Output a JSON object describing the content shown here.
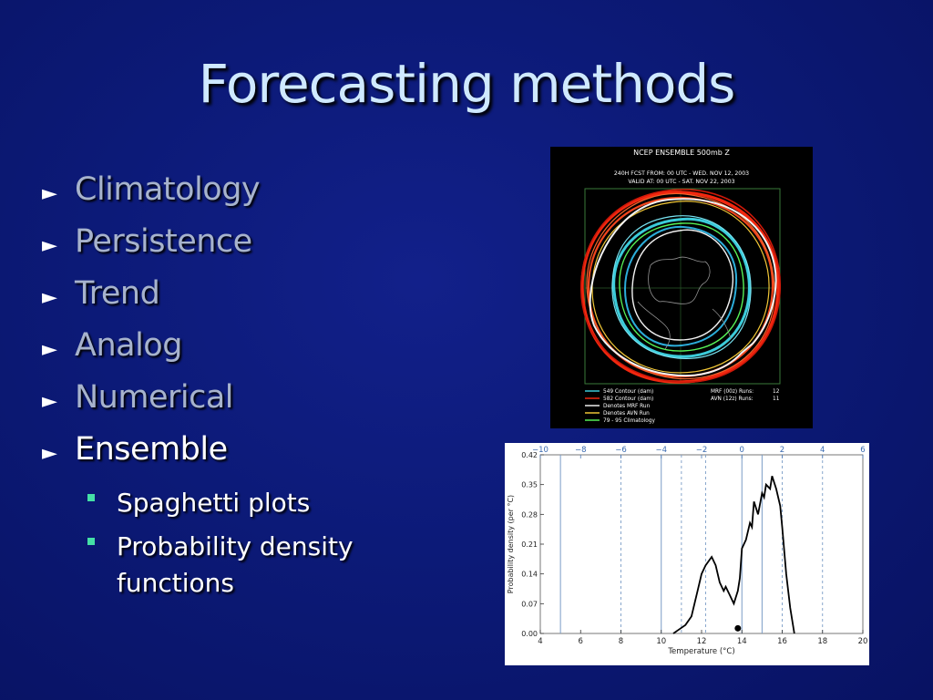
{
  "slide": {
    "title": "Forecasting methods",
    "bullets": [
      "Climatology",
      "Persistence",
      "Trend",
      "Analog",
      "Numerical",
      "Ensemble"
    ],
    "active_bullet": "Ensemble",
    "sub_bullets": [
      "Spaghetti plots",
      "Probability density functions"
    ],
    "colors": {
      "title": "#cfe9ff",
      "dim_text": "#a7b3cd",
      "sub_marker": "#45e0a6",
      "background": "#0c1a78"
    }
  },
  "spaghetti": {
    "title": "NCEP ENSEMBLE 500mb Z",
    "line1": "240H FCST FROM:  00 UTC - WED. NOV 12, 2003",
    "line2": "VALID AT:  00 UTC - SAT. NOV 22, 2003",
    "legend": [
      {
        "label": "549 Contour (dam)",
        "color": "#3fd7e6"
      },
      {
        "label": "582 Contour (dam)",
        "color": "#ff2a10"
      },
      {
        "label": "Denotes MRF Run",
        "color": "#ffffff"
      },
      {
        "label": "Denotes AVN Run",
        "color": "#ffd23a"
      },
      {
        "label": "79 - 95 Climatology",
        "color": "#5cff5c"
      }
    ],
    "runs": [
      {
        "label": "MRF (00z) Runs:",
        "value": "12"
      },
      {
        "label": "AVN (12z) Runs:",
        "value": "11"
      }
    ]
  },
  "chart_data": {
    "type": "line",
    "xlabel": "Temperature (°C)",
    "ylabel": "Probability density (per °C)",
    "xlim": [
      4,
      20
    ],
    "ylim": [
      0,
      0.42
    ],
    "x_ticks": [
      "4",
      "6",
      "8",
      "10",
      "12",
      "14",
      "16",
      "18",
      "20"
    ],
    "y_ticks": [
      "0.00",
      "0.07",
      "0.14",
      "0.21",
      "0.28",
      "0.35",
      "0.42"
    ],
    "top_ticks": [
      "−10",
      "−8",
      "−6",
      "−4",
      "−2",
      "0",
      "2",
      "4",
      "6"
    ],
    "series": [
      {
        "x": [
          10.6,
          10.9,
          11.2,
          11.5,
          11.8,
          12.0,
          12.2,
          12.5,
          12.7,
          12.9,
          13.1,
          13.2,
          13.4,
          13.6,
          13.8,
          13.9,
          14.0,
          14.2,
          14.4,
          14.5,
          14.6,
          14.8,
          15.0,
          15.1,
          15.2,
          15.4,
          15.5,
          15.7,
          15.9,
          16.0,
          16.2,
          16.4,
          16.6
        ],
        "y": [
          0.0,
          0.01,
          0.02,
          0.04,
          0.1,
          0.14,
          0.16,
          0.18,
          0.16,
          0.12,
          0.1,
          0.11,
          0.09,
          0.07,
          0.1,
          0.13,
          0.2,
          0.22,
          0.26,
          0.25,
          0.31,
          0.28,
          0.33,
          0.32,
          0.35,
          0.34,
          0.37,
          0.34,
          0.3,
          0.25,
          0.14,
          0.06,
          0.0
        ]
      }
    ],
    "marker": {
      "x": 13.8,
      "y": 0.01
    },
    "vlines_solid": [
      5,
      10,
      14,
      15
    ],
    "vlines_dashed": [
      8,
      11,
      12.2,
      16,
      18
    ]
  }
}
